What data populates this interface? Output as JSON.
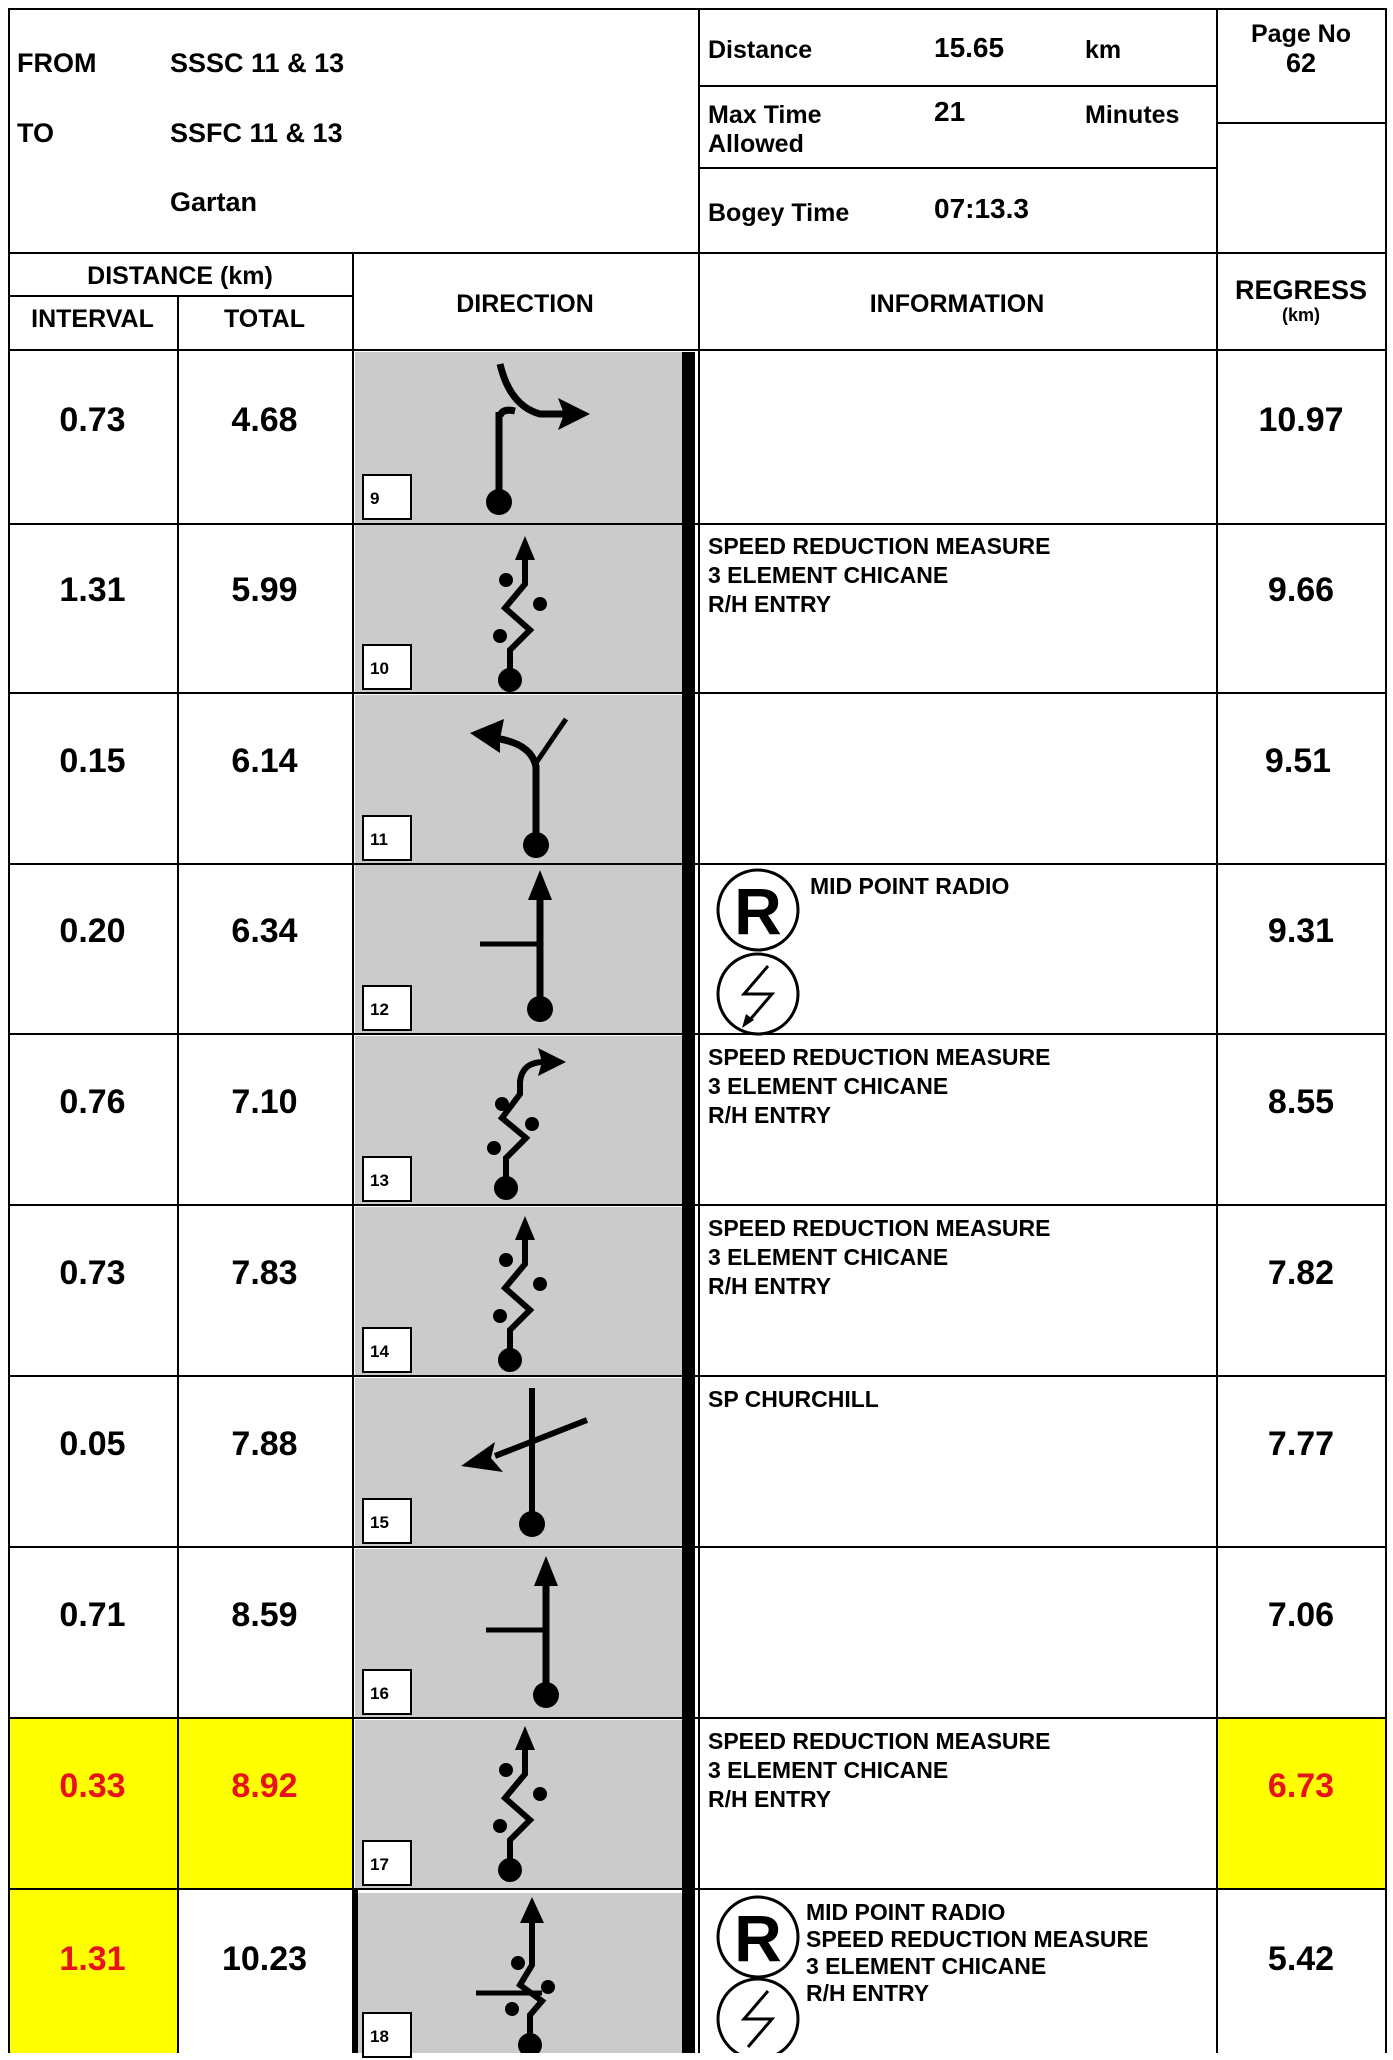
{
  "header": {
    "from_label": "FROM",
    "from_value": "SSSC 11 & 13",
    "to_label": "TO",
    "to_value": "SSFC 11 & 13",
    "location": "Gartan",
    "distance_label": "Distance",
    "distance_value": "15.65",
    "distance_unit": "km",
    "max_time_label_1": "Max Time",
    "max_time_label_2": "Allowed",
    "max_time_value": "21",
    "max_time_unit": "Minutes",
    "bogey_label": "Bogey Time",
    "bogey_value": "07:13.3",
    "page_label": "Page No",
    "page_value": "62"
  },
  "columns": {
    "distance_group": "DISTANCE (km)",
    "interval": "INTERVAL",
    "total": "TOTAL",
    "direction": "DIRECTION",
    "information": "INFORMATION",
    "regress": "REGRESS",
    "regress_unit": "(km)"
  },
  "rows": [
    {
      "interval": "0.73",
      "total": "4.68",
      "box": "9",
      "info": "",
      "regress": "10.97",
      "icon": "right-turn-icon"
    },
    {
      "interval": "1.31",
      "total": "5.99",
      "box": "10",
      "info": "SPEED REDUCTION MEASURE\n3 ELEMENT CHICANE\nR/H ENTRY",
      "regress": "9.66",
      "icon": "chicane-icon"
    },
    {
      "interval": "0.15",
      "total": "6.14",
      "box": "11",
      "info": "",
      "regress": "9.51",
      "icon": "left-fork-icon"
    },
    {
      "interval": "0.20",
      "total": "6.34",
      "box": "12",
      "info": "MID POINT RADIO",
      "regress": "9.31",
      "icon": "straight-junction-left-icon"
    },
    {
      "interval": "0.76",
      "total": "7.10",
      "box": "13",
      "info": "SPEED REDUCTION MEASURE\n3 ELEMENT CHICANE\nR/H ENTRY",
      "regress": "8.55",
      "icon": "chicane-right-exit-icon"
    },
    {
      "interval": "0.73",
      "total": "7.83",
      "box": "14",
      "info": "SPEED REDUCTION MEASURE\n3 ELEMENT CHICANE\nR/H ENTRY",
      "regress": "7.82",
      "icon": "chicane-icon"
    },
    {
      "interval": "0.05",
      "total": "7.88",
      "box": "15",
      "info": "SP CHURCHILL",
      "regress": "7.77",
      "icon": "crossroads-left-icon"
    },
    {
      "interval": "0.71",
      "total": "8.59",
      "box": "16",
      "info": "",
      "regress": "7.06",
      "icon": "straight-junction-left-icon"
    },
    {
      "interval": "0.33",
      "total": "8.92",
      "box": "17",
      "info": "SPEED REDUCTION MEASURE\n3 ELEMENT CHICANE\nR/H ENTRY",
      "regress": "6.73",
      "icon": "chicane-icon"
    },
    {
      "interval": "1.31",
      "total": "10.23",
      "box": "18",
      "info": "MID POINT RADIO\nSPEED REDUCTION MEASURE\n3 ELEMENT CHICANE\nR/H ENTRY",
      "regress": "5.42",
      "icon": "chicane-crossroad-icon"
    }
  ],
  "highlight": {
    "color": "#ffff00",
    "text_color": "#e8121a"
  }
}
